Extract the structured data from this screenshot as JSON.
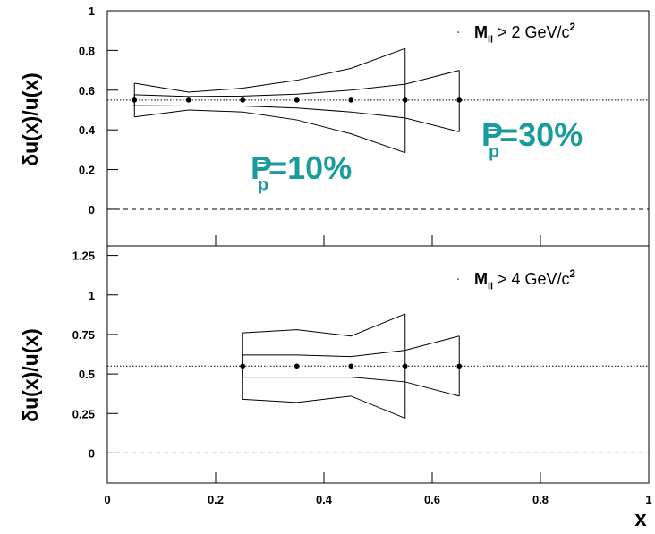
{
  "chart_data": [
    {
      "type": "band",
      "ylabel": "δu(x)/u(x)",
      "xlim": [
        0,
        1
      ],
      "xticks": [
        0,
        0.2,
        0.4,
        0.6,
        0.8,
        1
      ],
      "ylim": [
        -0.185,
        1
      ],
      "yticks": [
        0,
        0.2,
        0.4,
        0.6,
        0.8,
        1
      ],
      "hlines": [
        {
          "value": 0.55,
          "style": "dotted"
        },
        {
          "value": 0,
          "style": "dashed"
        }
      ],
      "bands": [
        {
          "x": [
            0.05,
            0.15,
            0.25,
            0.35,
            0.45,
            0.55
          ],
          "upper": [
            0.635,
            0.59,
            0.61,
            0.65,
            0.71,
            0.81
          ],
          "lower": [
            0.465,
            0.5,
            0.49,
            0.45,
            0.38,
            0.285
          ]
        },
        {
          "x": [
            0.05,
            0.15,
            0.25,
            0.35,
            0.45,
            0.55,
            0.65
          ],
          "upper": [
            0.577,
            0.568,
            0.57,
            0.58,
            0.6,
            0.63,
            0.7
          ],
          "lower": [
            0.522,
            0.52,
            0.52,
            0.51,
            0.49,
            0.46,
            0.39
          ]
        }
      ],
      "points": {
        "x": [
          0.05,
          0.15,
          0.25,
          0.35,
          0.45,
          0.55,
          0.65
        ],
        "y": [
          0.55,
          0.55,
          0.55,
          0.55,
          0.55,
          0.55,
          0.55
        ]
      },
      "legend": {
        "main": "M",
        "sub": "ll",
        "rest": " > 2 GeV/c",
        "sup": "2"
      },
      "annotations": [
        {
          "main": "P",
          "sup": "–",
          "sub": "p",
          "rest": "=10%",
          "color": "#1a9c9c"
        },
        {
          "main": "P",
          "sup": "–",
          "sub": "p",
          "rest": "=30%",
          "color": "#1a9c9c"
        }
      ]
    },
    {
      "type": "band",
      "ylabel": "δu(x)/u(x)",
      "xlabel": "x",
      "xlim": [
        0,
        1
      ],
      "xticks": [
        0,
        0.2,
        0.4,
        0.6,
        0.8,
        1
      ],
      "ylim": [
        -0.19,
        1.31
      ],
      "yticks": [
        0,
        0.25,
        0.5,
        0.75,
        1,
        1.25
      ],
      "hlines": [
        {
          "value": 0.55,
          "style": "dotted"
        },
        {
          "value": 0,
          "style": "dashed"
        }
      ],
      "bands": [
        {
          "x": [
            0.25,
            0.35,
            0.45,
            0.55
          ],
          "upper": [
            0.76,
            0.78,
            0.74,
            0.88
          ],
          "lower": [
            0.34,
            0.32,
            0.36,
            0.22
          ]
        },
        {
          "x": [
            0.25,
            0.35,
            0.45,
            0.55,
            0.65
          ],
          "upper": [
            0.62,
            0.62,
            0.61,
            0.65,
            0.74
          ],
          "lower": [
            0.48,
            0.48,
            0.48,
            0.45,
            0.36
          ]
        }
      ],
      "points": {
        "x": [
          0.25,
          0.35,
          0.45,
          0.55,
          0.65
        ],
        "y": [
          0.55,
          0.55,
          0.55,
          0.55,
          0.55
        ]
      },
      "legend": {
        "main": "M",
        "sub": "ll",
        "rest": " > 4 GeV/c",
        "sup": "2"
      }
    }
  ]
}
